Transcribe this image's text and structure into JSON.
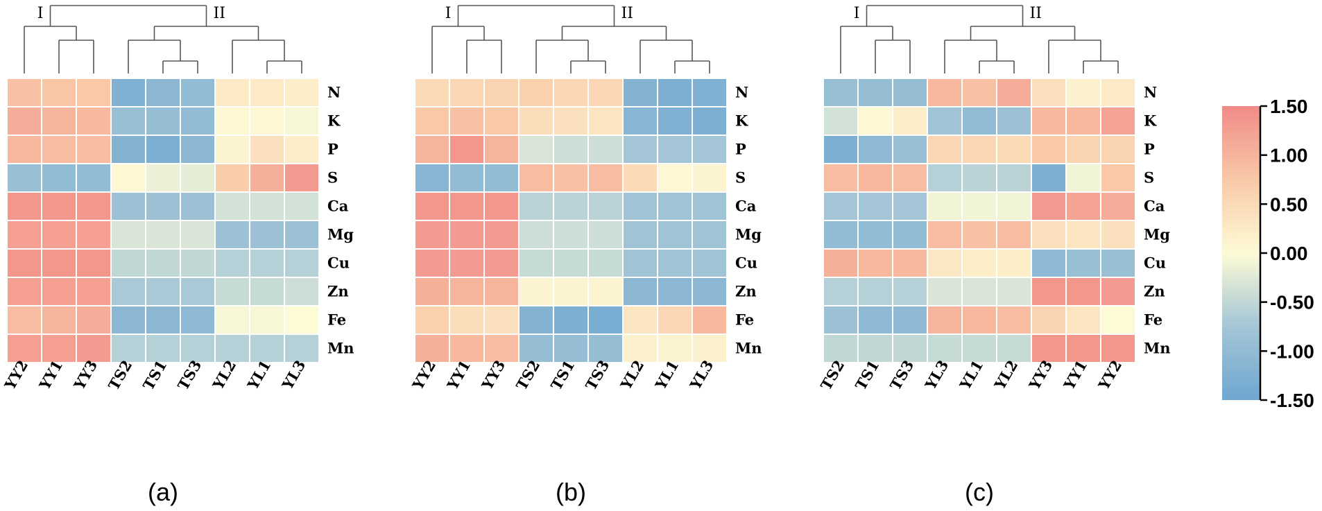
{
  "chart_data": [
    {
      "type": "heatmap",
      "panel_label": "(a)",
      "columns": [
        "YY2",
        "YY1",
        "YY3",
        "TS2",
        "TS1",
        "TS3",
        "YL2",
        "YL1",
        "YL3"
      ],
      "rows": [
        "N",
        "K",
        "P",
        "S",
        "Ca",
        "Mg",
        "Cu",
        "Zn",
        "Fe",
        "Mn"
      ],
      "clusters": [
        "I",
        "II"
      ],
      "values": [
        [
          0.85,
          0.8,
          0.75,
          -1.25,
          -1.1,
          -1.0,
          0.25,
          0.25,
          0.2
        ],
        [
          1.1,
          1.0,
          0.95,
          -0.9,
          -0.95,
          -1.0,
          0.05,
          0.05,
          -0.05
        ],
        [
          0.95,
          0.9,
          0.9,
          -1.2,
          -1.3,
          -1.1,
          0.1,
          0.4,
          0.2
        ],
        [
          -0.9,
          -1.0,
          -1.0,
          0.05,
          -0.15,
          -0.2,
          0.7,
          1.05,
          1.3
        ],
        [
          1.35,
          1.35,
          1.35,
          -0.85,
          -0.85,
          -0.85,
          -0.35,
          -0.35,
          -0.35
        ],
        [
          1.25,
          1.25,
          1.25,
          -0.3,
          -0.3,
          -0.3,
          -0.85,
          -0.85,
          -0.85
        ],
        [
          1.35,
          1.35,
          1.35,
          -0.5,
          -0.5,
          -0.5,
          -0.6,
          -0.6,
          -0.6
        ],
        [
          1.25,
          1.25,
          1.25,
          -0.7,
          -0.7,
          -0.7,
          -0.45,
          -0.45,
          -0.4
        ],
        [
          0.9,
          1.0,
          1.1,
          -1.1,
          -1.1,
          -1.05,
          -0.05,
          -0.05,
          0.0
        ],
        [
          1.25,
          1.25,
          1.3,
          -0.6,
          -0.6,
          -0.6,
          -0.6,
          -0.6,
          -0.6
        ]
      ]
    },
    {
      "type": "heatmap",
      "panel_label": "(b)",
      "columns": [
        "YY2",
        "YY1",
        "YY3",
        "TS2",
        "TS1",
        "TS3",
        "YL2",
        "YL1",
        "YL3"
      ],
      "rows": [
        "N",
        "K",
        "P",
        "S",
        "Ca",
        "Mg",
        "Cu",
        "Zn",
        "Fe",
        "Mn"
      ],
      "clusters": [
        "I",
        "II"
      ],
      "values": [
        [
          0.5,
          0.55,
          0.6,
          0.65,
          0.55,
          0.55,
          -1.2,
          -1.3,
          -1.25
        ],
        [
          0.75,
          0.85,
          0.75,
          0.45,
          0.4,
          0.35,
          -1.15,
          -1.25,
          -1.3
        ],
        [
          1.0,
          1.35,
          1.0,
          -0.3,
          -0.4,
          -0.4,
          -0.75,
          -0.75,
          -0.75
        ],
        [
          -1.15,
          -1.0,
          -1.0,
          0.9,
          0.85,
          0.9,
          0.5,
          0.05,
          0.1
        ],
        [
          1.35,
          1.35,
          1.35,
          -0.55,
          -0.55,
          -0.55,
          -0.8,
          -0.8,
          -0.8
        ],
        [
          1.3,
          1.3,
          1.3,
          -0.4,
          -0.4,
          -0.4,
          -0.8,
          -0.8,
          -0.8
        ],
        [
          1.3,
          1.3,
          1.3,
          -0.45,
          -0.45,
          -0.45,
          -0.8,
          -0.8,
          -0.8
        ],
        [
          1.05,
          1.0,
          1.0,
          0.1,
          0.1,
          0.1,
          -1.1,
          -1.1,
          -1.1
        ],
        [
          0.65,
          0.45,
          0.4,
          -1.2,
          -1.3,
          -1.35,
          0.35,
          0.55,
          0.95
        ],
        [
          1.05,
          0.95,
          0.9,
          -0.95,
          -0.95,
          -0.95,
          0.15,
          0.1,
          0.15
        ]
      ]
    },
    {
      "type": "heatmap",
      "panel_label": "(c)",
      "columns": [
        "TS2",
        "TS1",
        "TS3",
        "YL3",
        "YL1",
        "YL2",
        "YY3",
        "YY1",
        "YY2"
      ],
      "rows": [
        "N",
        "K",
        "P",
        "S",
        "Ca",
        "Mg",
        "Cu",
        "Zn",
        "Fe",
        "Mn"
      ],
      "clusters": [
        "I",
        "II"
      ],
      "values": [
        [
          -0.9,
          -0.95,
          -0.95,
          0.95,
          0.85,
          1.1,
          0.4,
          0.15,
          0.25
        ],
        [
          -0.35,
          0.05,
          0.2,
          -0.8,
          -1.0,
          -0.85,
          0.95,
          0.95,
          1.2
        ],
        [
          -1.3,
          -1.05,
          -0.9,
          0.55,
          0.55,
          0.5,
          0.75,
          0.6,
          0.6
        ],
        [
          0.9,
          0.95,
          0.9,
          -0.6,
          -0.55,
          -0.55,
          -1.3,
          -0.1,
          0.75
        ],
        [
          -0.75,
          -0.75,
          -0.75,
          -0.1,
          -0.1,
          -0.1,
          1.3,
          1.2,
          1.1
        ],
        [
          -1.0,
          -1.0,
          -1.0,
          0.9,
          0.85,
          0.9,
          0.4,
          0.35,
          0.4
        ],
        [
          1.05,
          0.95,
          0.95,
          0.3,
          0.2,
          0.2,
          -1.05,
          -0.9,
          -0.9
        ],
        [
          -0.6,
          -0.6,
          -0.6,
          -0.3,
          -0.3,
          -0.3,
          1.35,
          1.35,
          1.3
        ],
        [
          -0.85,
          -1.05,
          -1.05,
          1.0,
          0.95,
          0.9,
          0.6,
          0.35,
          0.0
        ],
        [
          -0.5,
          -0.5,
          -0.5,
          -0.45,
          -0.45,
          -0.45,
          1.35,
          1.35,
          1.35
        ]
      ]
    }
  ],
  "colorbar": {
    "ticks": [
      "1.50",
      "1.00",
      "0.50",
      "0.00",
      "-0.50",
      "-1.00",
      "-1.50"
    ],
    "tick_values": [
      1.5,
      1.0,
      0.5,
      0.0,
      -0.5,
      -1.0,
      -1.5
    ],
    "range": [
      -1.5,
      1.5
    ],
    "colors": {
      "low": "#6fa7d0",
      "lowmid": "#a3c5d6",
      "mid": "#fdfbd6",
      "highmid": "#f9c9a7",
      "high": "#f18a87"
    }
  }
}
